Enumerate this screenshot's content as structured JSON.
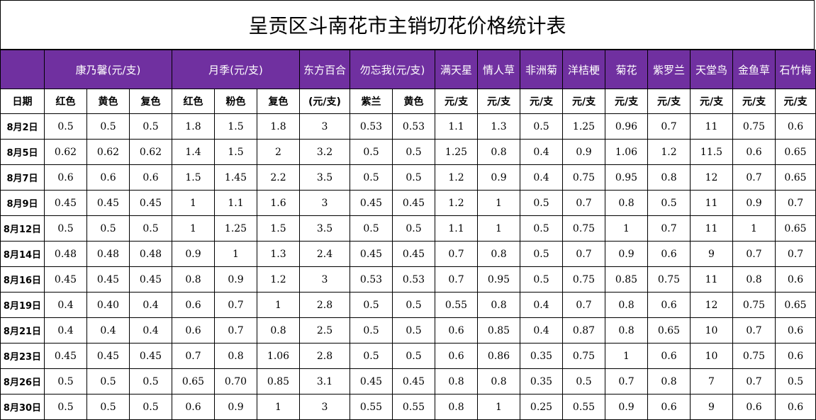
{
  "title": "呈贡区斗南花市主销切花价格统计表",
  "groups": [
    {
      "label": "康乃馨(元/支)",
      "span": 3
    },
    {
      "label": "月季(元/支)",
      "span": 3
    },
    {
      "label": "东方百合",
      "span": 1
    },
    {
      "label": "勿忘我(元/支)",
      "span": 2
    },
    {
      "label": "满天星",
      "span": 1
    },
    {
      "label": "情人草",
      "span": 1
    },
    {
      "label": "非洲菊",
      "span": 1
    },
    {
      "label": "洋桔梗",
      "span": 1
    },
    {
      "label": "菊花",
      "span": 1
    },
    {
      "label": "紫罗兰",
      "span": 1
    },
    {
      "label": "天堂鸟",
      "span": 1
    },
    {
      "label": "金鱼草",
      "span": 1
    },
    {
      "label": "石竹梅",
      "span": 1
    }
  ],
  "subheaders": [
    "日期",
    "红色",
    "黄色",
    "复色",
    "红色",
    "粉色",
    "复色",
    "(元/支)",
    "紫兰",
    "黄色",
    "元/支",
    "元/支",
    "元/支",
    "元/支",
    "元/支",
    "元/支",
    "元/支",
    "元/支",
    "元/支"
  ],
  "rows": [
    [
      "8月2日",
      "0.5",
      "0.5",
      "0.5",
      "1.8",
      "1.5",
      "1.8",
      "3",
      "0.53",
      "0.53",
      "1.1",
      "1.3",
      "0.5",
      "1.25",
      "0.96",
      "0.7",
      "11",
      "0.75",
      "0.6"
    ],
    [
      "8月5日",
      "0.62",
      "0.62",
      "0.62",
      "1.4",
      "1.5",
      "2",
      "3.2",
      "0.5",
      "0.5",
      "1.25",
      "0.8",
      "0.4",
      "0.9",
      "1.06",
      "1.2",
      "11.5",
      "0.6",
      "0.65"
    ],
    [
      "8月7日",
      "0.6",
      "0.6",
      "0.6",
      "1.5",
      "1.45",
      "2.2",
      "3.5",
      "0.5",
      "0.5",
      "1.2",
      "0.9",
      "0.4",
      "0.75",
      "0.95",
      "0.8",
      "12",
      "0.7",
      "0.65"
    ],
    [
      "8月9日",
      "0.45",
      "0.45",
      "0.45",
      "1",
      "1.1",
      "1.6",
      "3",
      "0.45",
      "0.45",
      "1.2",
      "1",
      "0.5",
      "0.7",
      "0.8",
      "0.5",
      "11",
      "0.9",
      "0.7"
    ],
    [
      "8月12日",
      "0.5",
      "0.5",
      "0.5",
      "1",
      "1.25",
      "1.5",
      "3.5",
      "0.5",
      "0.5",
      "1.1",
      "1",
      "0.5",
      "0.75",
      "1",
      "0.7",
      "11",
      "1",
      "0.65"
    ],
    [
      "8月14日",
      "0.48",
      "0.48",
      "0.48",
      "0.9",
      "1",
      "1.3",
      "2.4",
      "0.45",
      "0.45",
      "0.7",
      "0.8",
      "0.5",
      "0.7",
      "0.9",
      "0.6",
      "9",
      "0.7",
      "0.7"
    ],
    [
      "8月16日",
      "0.45",
      "0.45",
      "0.45",
      "0.8",
      "0.9",
      "1.2",
      "3",
      "0.53",
      "0.53",
      "0.7",
      "0.95",
      "0.5",
      "0.75",
      "0.85",
      "0.75",
      "11",
      "0.8",
      "0.6"
    ],
    [
      "8月19日",
      "0.4",
      "0.40",
      "0.4",
      "0.6",
      "0.7",
      "1",
      "2.8",
      "0.5",
      "0.5",
      "0.55",
      "0.8",
      "0.4",
      "0.7",
      "0.8",
      "0.6",
      "12",
      "0.75",
      "0.65"
    ],
    [
      "8月21日",
      "0.4",
      "0.4",
      "0.4",
      "0.6",
      "0.7",
      "0.8",
      "2.5",
      "0.5",
      "0.5",
      "0.6",
      "0.85",
      "0.4",
      "0.87",
      "0.8",
      "0.65",
      "10",
      "0.7",
      "0.6"
    ],
    [
      "8月23日",
      "0.45",
      "0.45",
      "0.45",
      "0.7",
      "0.8",
      "1.06",
      "2.8",
      "0.5",
      "0.5",
      "0.6",
      "0.86",
      "0.35",
      "0.75",
      "1",
      "0.6",
      "10",
      "0.75",
      "0.6"
    ],
    [
      "8月26日",
      "0.5",
      "0.5",
      "0.5",
      "0.65",
      "0.70",
      "0.85",
      "3.1",
      "0.45",
      "0.45",
      "0.8",
      "0.8",
      "0.35",
      "0.5",
      "0.7",
      "0.8",
      "7",
      "0.7",
      "0.5"
    ],
    [
      "8月30日",
      "0.5",
      "0.5",
      "0.5",
      "0.6",
      "0.9",
      "1",
      "3",
      "0.55",
      "0.55",
      "0.8",
      "1",
      "0.25",
      "0.55",
      "0.9",
      "0.6",
      "9",
      "0.6",
      "0.6"
    ]
  ],
  "colors": {
    "header_bg": "#7030a0",
    "header_text": "#ffffff"
  }
}
